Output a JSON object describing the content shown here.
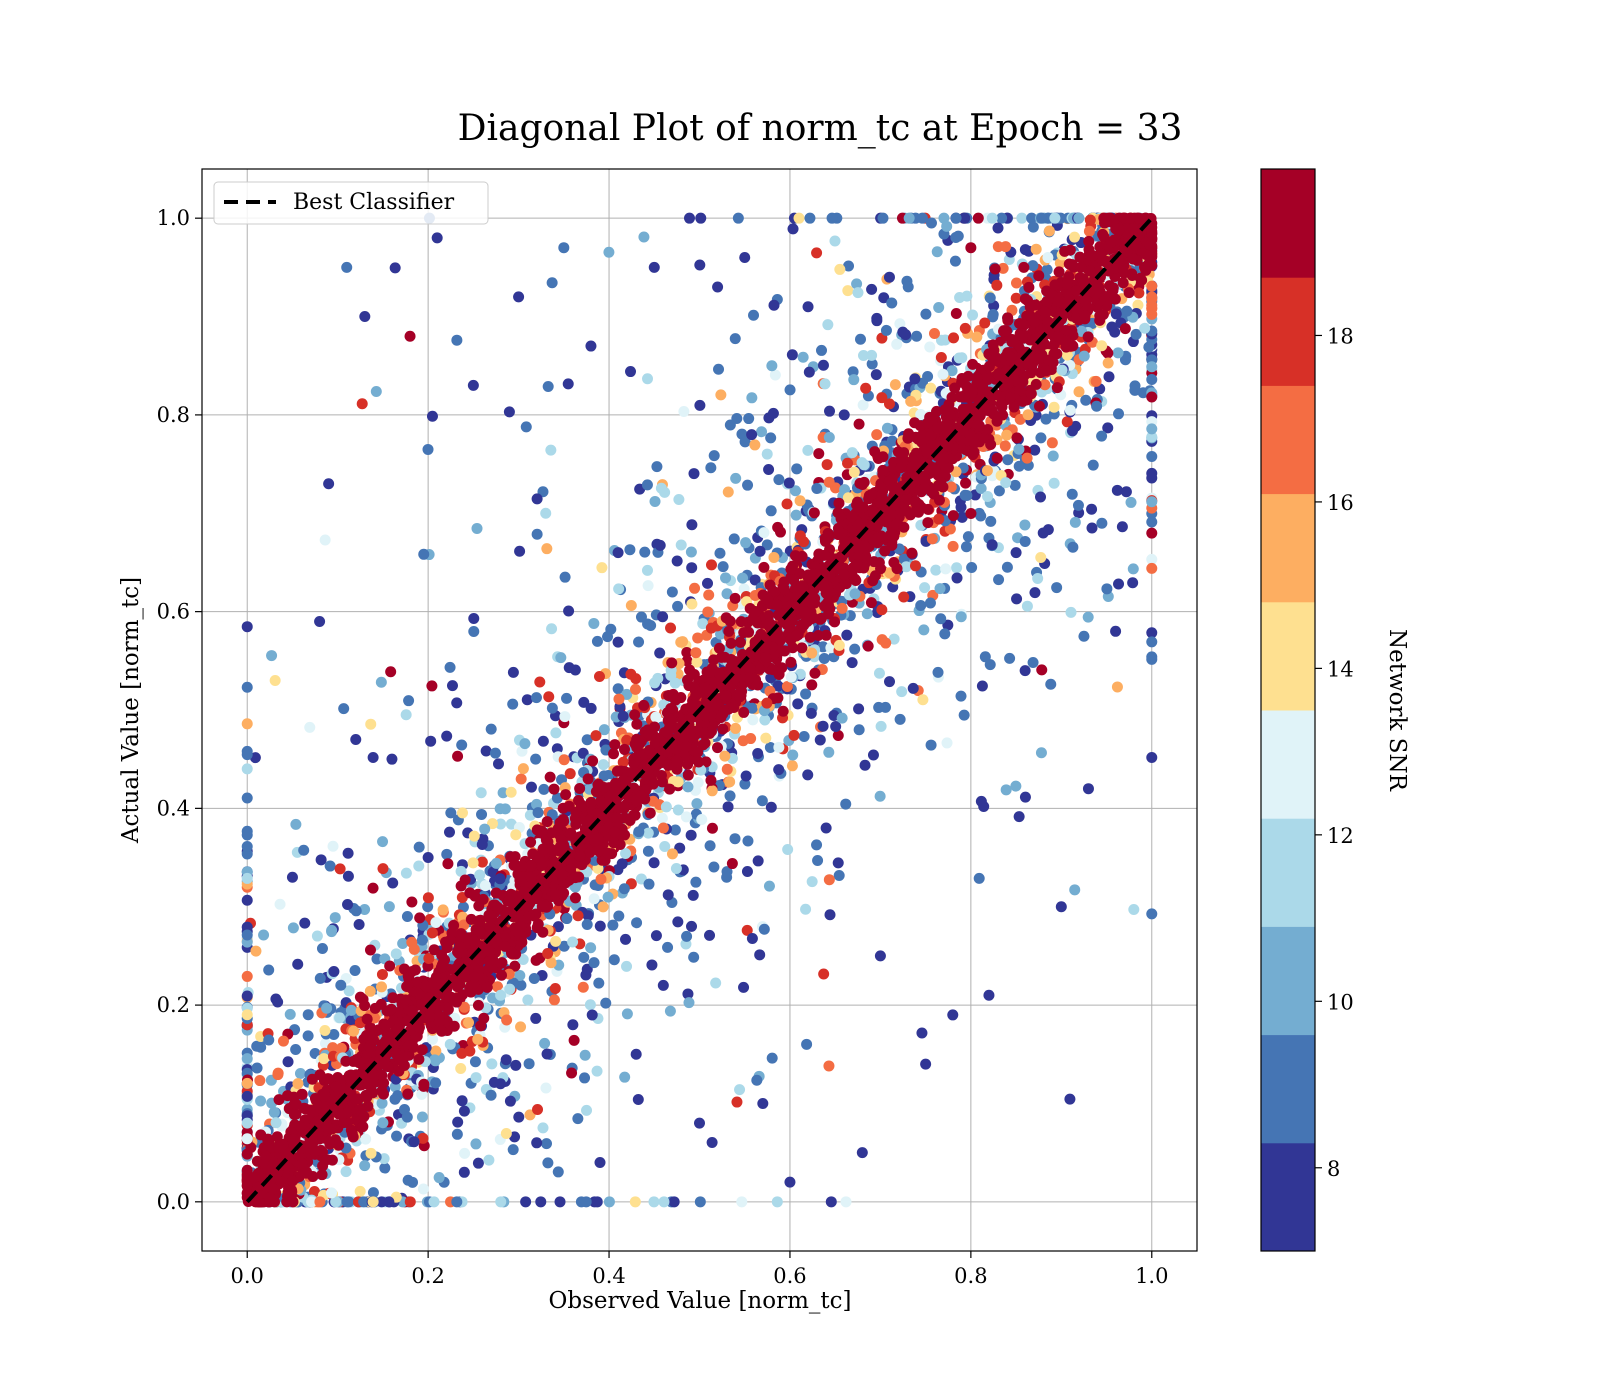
{
  "chart_data": {
    "type": "scatter",
    "title": "Diagonal Plot of norm_tc at Epoch = 33",
    "xlabel": "Observed Value [norm_tc]",
    "ylabel": "Actual Value [norm_tc]",
    "xlim": [
      -0.05,
      1.05
    ],
    "ylim": [
      -0.05,
      1.05
    ],
    "xticks": [
      0.0,
      0.2,
      0.4,
      0.6,
      0.8,
      1.0
    ],
    "yticks": [
      0.0,
      0.2,
      0.4,
      0.6,
      0.8,
      1.0
    ],
    "xtick_labels": [
      "0.0",
      "0.2",
      "0.4",
      "0.6",
      "0.8",
      "1.0"
    ],
    "ytick_labels": [
      "0.0",
      "0.2",
      "0.4",
      "0.6",
      "0.8",
      "1.0"
    ],
    "grid": true,
    "legend": {
      "placement": "top-left",
      "entries": [
        "Best Classifier"
      ]
    },
    "reference_line": {
      "name": "Best Classifier",
      "x": [
        0.0,
        1.0
      ],
      "y": [
        0.0,
        1.0
      ],
      "style": "dashed",
      "color": "#000000"
    },
    "colorbar": {
      "label": "Network SNR",
      "range": [
        7,
        20
      ],
      "ticks": [
        8,
        10,
        12,
        14,
        16,
        18
      ],
      "tick_labels": [
        "8",
        "10",
        "12",
        "14",
        "16",
        "18"
      ],
      "colors": [
        "#313695",
        "#4575b4",
        "#74add1",
        "#abd9e9",
        "#e0f3f8",
        "#fee090",
        "#fdae61",
        "#f46d43",
        "#d73027",
        "#a50026"
      ]
    },
    "points": {
      "description_note": "",
      "x": [
        0.11,
        0.13,
        0.09,
        0.21,
        0.18,
        0.25,
        0.3,
        0.35,
        0.33,
        0.38,
        0.41,
        0.45,
        0.47,
        0.52,
        0.55,
        0.58,
        0.62,
        0.66,
        0.71,
        0.74,
        0.8,
        0.83,
        0.85,
        0.88,
        0.93,
        0.96,
        0.9,
        0.86,
        0.82,
        0.78,
        0.75,
        0.7,
        0.68,
        0.64,
        0.6,
        0.57,
        0.53,
        0.5,
        0.46,
        0.43,
        0.39,
        0.36,
        0.32,
        0.28,
        0.24,
        0.2,
        0.16,
        0.12,
        0.08,
        0.05
      ],
      "y": [
        0.95,
        0.9,
        0.73,
        0.98,
        0.88,
        0.83,
        0.92,
        0.97,
        0.7,
        0.87,
        0.66,
        0.95,
        0.62,
        0.93,
        0.96,
        0.85,
        0.91,
        0.8,
        0.94,
        0.88,
        0.97,
        0.99,
        0.66,
        0.68,
        0.42,
        0.58,
        0.3,
        0.54,
        0.21,
        0.19,
        0.14,
        0.25,
        0.05,
        0.38,
        0.02,
        0.1,
        0.33,
        0.08,
        0.22,
        0.15,
        0.04,
        0.18,
        0.06,
        0.12,
        0.03,
        0.35,
        0.45,
        0.47,
        0.59,
        0.33
      ],
      "snr": [
        9,
        8,
        8,
        8,
        19,
        8,
        8,
        9,
        11,
        8,
        8,
        7,
        9,
        8,
        8,
        10,
        8,
        8,
        8,
        9,
        19,
        8,
        8,
        8,
        8,
        8,
        8,
        8,
        8,
        8,
        8,
        8,
        8,
        8,
        8,
        8,
        9,
        8,
        8,
        8,
        8,
        8,
        8,
        8,
        8,
        8,
        8,
        8,
        8,
        8
      ]
    }
  }
}
